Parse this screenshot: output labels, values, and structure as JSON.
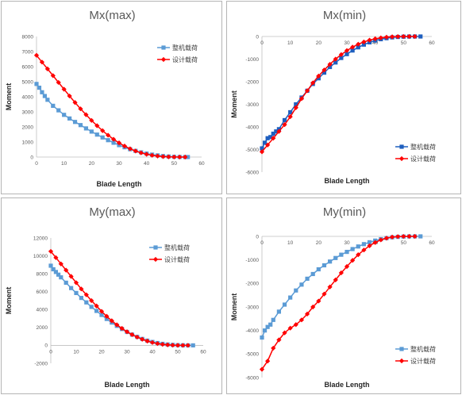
{
  "chart_data": [
    {
      "type": "line",
      "title": "Mx(max)",
      "xlabel": "Blade Length",
      "ylabel": "Moment",
      "xlim": [
        0,
        60
      ],
      "ylim": [
        0,
        8000
      ],
      "xticks": [
        "0",
        "10",
        "20",
        "30",
        "40",
        "50",
        "60"
      ],
      "yticks": [
        "0",
        "1000",
        "2000",
        "3000",
        "4000",
        "5000",
        "6000",
        "7000",
        "8000"
      ],
      "xaxis_position": "bottom",
      "legend_position": "right",
      "grid": false,
      "series": [
        {
          "name": "整机载荷",
          "color": "#5b9bd5",
          "marker": "square",
          "x": [
            0,
            1,
            2,
            3,
            4,
            6,
            8,
            10,
            12,
            14,
            16,
            18,
            20,
            22,
            24,
            26,
            28,
            30,
            32,
            34,
            36,
            38,
            40,
            42,
            44,
            46,
            48,
            50,
            52,
            54,
            55
          ],
          "y": [
            4850,
            4600,
            4300,
            4050,
            3800,
            3400,
            3100,
            2800,
            2560,
            2330,
            2120,
            1900,
            1690,
            1490,
            1300,
            1120,
            950,
            790,
            650,
            520,
            410,
            310,
            230,
            160,
            110,
            65,
            35,
            15,
            5,
            0,
            0
          ]
        },
        {
          "name": "设计载荷",
          "color": "#ff0000",
          "marker": "diamond",
          "x": [
            0,
            2,
            4,
            6,
            8,
            10,
            12,
            14,
            16,
            18,
            20,
            22,
            24,
            26,
            28,
            30,
            32,
            34,
            36,
            38,
            40,
            42,
            44,
            46,
            48,
            50,
            52,
            54
          ],
          "y": [
            6750,
            6300,
            5850,
            5400,
            4950,
            4500,
            4050,
            3620,
            3200,
            2810,
            2430,
            2080,
            1750,
            1450,
            1180,
            940,
            730,
            550,
            400,
            280,
            185,
            115,
            65,
            30,
            12,
            4,
            1,
            0
          ]
        }
      ]
    },
    {
      "type": "line",
      "title": "Mx(min)",
      "xlabel": "Blade Length",
      "ylabel": "Moment",
      "xlim": [
        0,
        60
      ],
      "ylim": [
        -6000,
        0
      ],
      "xticks": [
        "0",
        "10",
        "20",
        "30",
        "40",
        "50",
        "60"
      ],
      "yticks": [
        "-6000",
        "-5000",
        "-4000",
        "-3000",
        "-2000",
        "-1000",
        "0"
      ],
      "xaxis_position": "top",
      "legend_position": "bottom-right",
      "grid": false,
      "series": [
        {
          "name": "整机载荷",
          "color": "#1f5fbf",
          "marker": "square",
          "x": [
            0,
            1,
            2,
            3,
            4,
            5,
            6,
            8,
            10,
            12,
            14,
            16,
            18,
            20,
            22,
            24,
            26,
            28,
            30,
            32,
            34,
            36,
            38,
            40,
            42,
            44,
            46,
            48,
            50,
            52,
            54,
            56
          ],
          "y": [
            -4950,
            -4700,
            -4500,
            -4450,
            -4300,
            -4200,
            -4100,
            -3700,
            -3350,
            -3000,
            -2700,
            -2400,
            -2100,
            -1850,
            -1600,
            -1350,
            -1150,
            -950,
            -780,
            -620,
            -480,
            -360,
            -260,
            -180,
            -120,
            -75,
            -40,
            -20,
            -8,
            -2,
            0,
            0
          ]
        },
        {
          "name": "设计载荷",
          "color": "#ff0000",
          "marker": "diamond",
          "x": [
            0,
            2,
            4,
            6,
            8,
            10,
            12,
            14,
            16,
            18,
            20,
            22,
            24,
            26,
            28,
            30,
            32,
            34,
            36,
            38,
            40,
            42,
            44,
            46,
            48,
            50,
            52,
            54
          ],
          "y": [
            -5100,
            -4800,
            -4500,
            -4200,
            -3900,
            -3550,
            -3150,
            -2750,
            -2400,
            -2050,
            -1750,
            -1480,
            -1230,
            -1000,
            -800,
            -620,
            -470,
            -340,
            -240,
            -160,
            -100,
            -60,
            -30,
            -12,
            -4,
            -1,
            0,
            0
          ]
        }
      ]
    },
    {
      "type": "line",
      "title": "My(max)",
      "xlabel": "Blade Length",
      "ylabel": "Moment",
      "xlim": [
        0,
        60
      ],
      "ylim": [
        -2000,
        12000
      ],
      "xticks": [
        "0",
        "10",
        "20",
        "30",
        "40",
        "50",
        "60"
      ],
      "yticks": [
        "-2000",
        "0",
        "2000",
        "4000",
        "6000",
        "8000",
        "10000",
        "12000"
      ],
      "xaxis_position": "zero",
      "legend_position": "top-right",
      "grid": false,
      "series": [
        {
          "name": "整机载荷",
          "color": "#5b9bd5",
          "marker": "square",
          "x": [
            0,
            1,
            2,
            3,
            4,
            6,
            8,
            10,
            12,
            14,
            16,
            18,
            20,
            22,
            24,
            26,
            28,
            30,
            32,
            34,
            36,
            38,
            40,
            42,
            44,
            46,
            48,
            50,
            52,
            54,
            56
          ],
          "y": [
            8900,
            8500,
            8200,
            7900,
            7600,
            7000,
            6400,
            5850,
            5300,
            4800,
            4300,
            3850,
            3400,
            2950,
            2550,
            2180,
            1830,
            1500,
            1200,
            950,
            720,
            530,
            380,
            260,
            170,
            100,
            55,
            25,
            8,
            2,
            0
          ]
        },
        {
          "name": "设计载荷",
          "color": "#ff0000",
          "marker": "diamond",
          "x": [
            0,
            2,
            4,
            6,
            8,
            10,
            12,
            14,
            16,
            18,
            20,
            22,
            24,
            26,
            28,
            30,
            32,
            34,
            36,
            38,
            40,
            42,
            44,
            46,
            48,
            50,
            52,
            54
          ],
          "y": [
            10500,
            9800,
            9100,
            8400,
            7700,
            7000,
            6300,
            5650,
            5000,
            4400,
            3800,
            3250,
            2750,
            2300,
            1900,
            1520,
            1200,
            920,
            680,
            480,
            320,
            200,
            110,
            55,
            20,
            5,
            0,
            0
          ]
        }
      ]
    },
    {
      "type": "line",
      "title": "My(min)",
      "xlabel": "Blade Length",
      "ylabel": "Moment",
      "xlim": [
        0,
        60
      ],
      "ylim": [
        -6000,
        0
      ],
      "xticks": [
        "0",
        "10",
        "20",
        "30",
        "40",
        "50",
        "60"
      ],
      "yticks": [
        "-6000",
        "-5000",
        "-4000",
        "-3000",
        "-2000",
        "-1000",
        "0"
      ],
      "xaxis_position": "top",
      "legend_position": "bottom-right",
      "grid": false,
      "series": [
        {
          "name": "整机载荷",
          "color": "#5b9bd5",
          "marker": "square",
          "x": [
            0,
            1,
            2,
            3,
            4,
            6,
            8,
            10,
            12,
            14,
            16,
            18,
            20,
            22,
            24,
            26,
            28,
            30,
            32,
            34,
            36,
            38,
            40,
            42,
            44,
            46,
            48,
            50,
            52,
            54,
            56
          ],
          "y": [
            -4300,
            -4000,
            -3850,
            -3750,
            -3550,
            -3200,
            -2900,
            -2600,
            -2300,
            -2050,
            -1800,
            -1600,
            -1400,
            -1230,
            -1070,
            -920,
            -780,
            -660,
            -540,
            -430,
            -330,
            -250,
            -180,
            -120,
            -75,
            -40,
            -20,
            -8,
            -2,
            0,
            0
          ]
        },
        {
          "name": "设计载荷",
          "color": "#ff0000",
          "marker": "diamond",
          "x": [
            0,
            2,
            4,
            6,
            8,
            10,
            12,
            14,
            16,
            18,
            20,
            22,
            24,
            26,
            28,
            30,
            32,
            34,
            36,
            38,
            40,
            42,
            44,
            46,
            48,
            50,
            52,
            54
          ],
          "y": [
            -5650,
            -5300,
            -4750,
            -4400,
            -4100,
            -3900,
            -3750,
            -3550,
            -3300,
            -3000,
            -2750,
            -2450,
            -2150,
            -1850,
            -1550,
            -1280,
            -1020,
            -780,
            -580,
            -400,
            -260,
            -150,
            -75,
            -30,
            -10,
            -2,
            0,
            0
          ]
        }
      ]
    }
  ]
}
